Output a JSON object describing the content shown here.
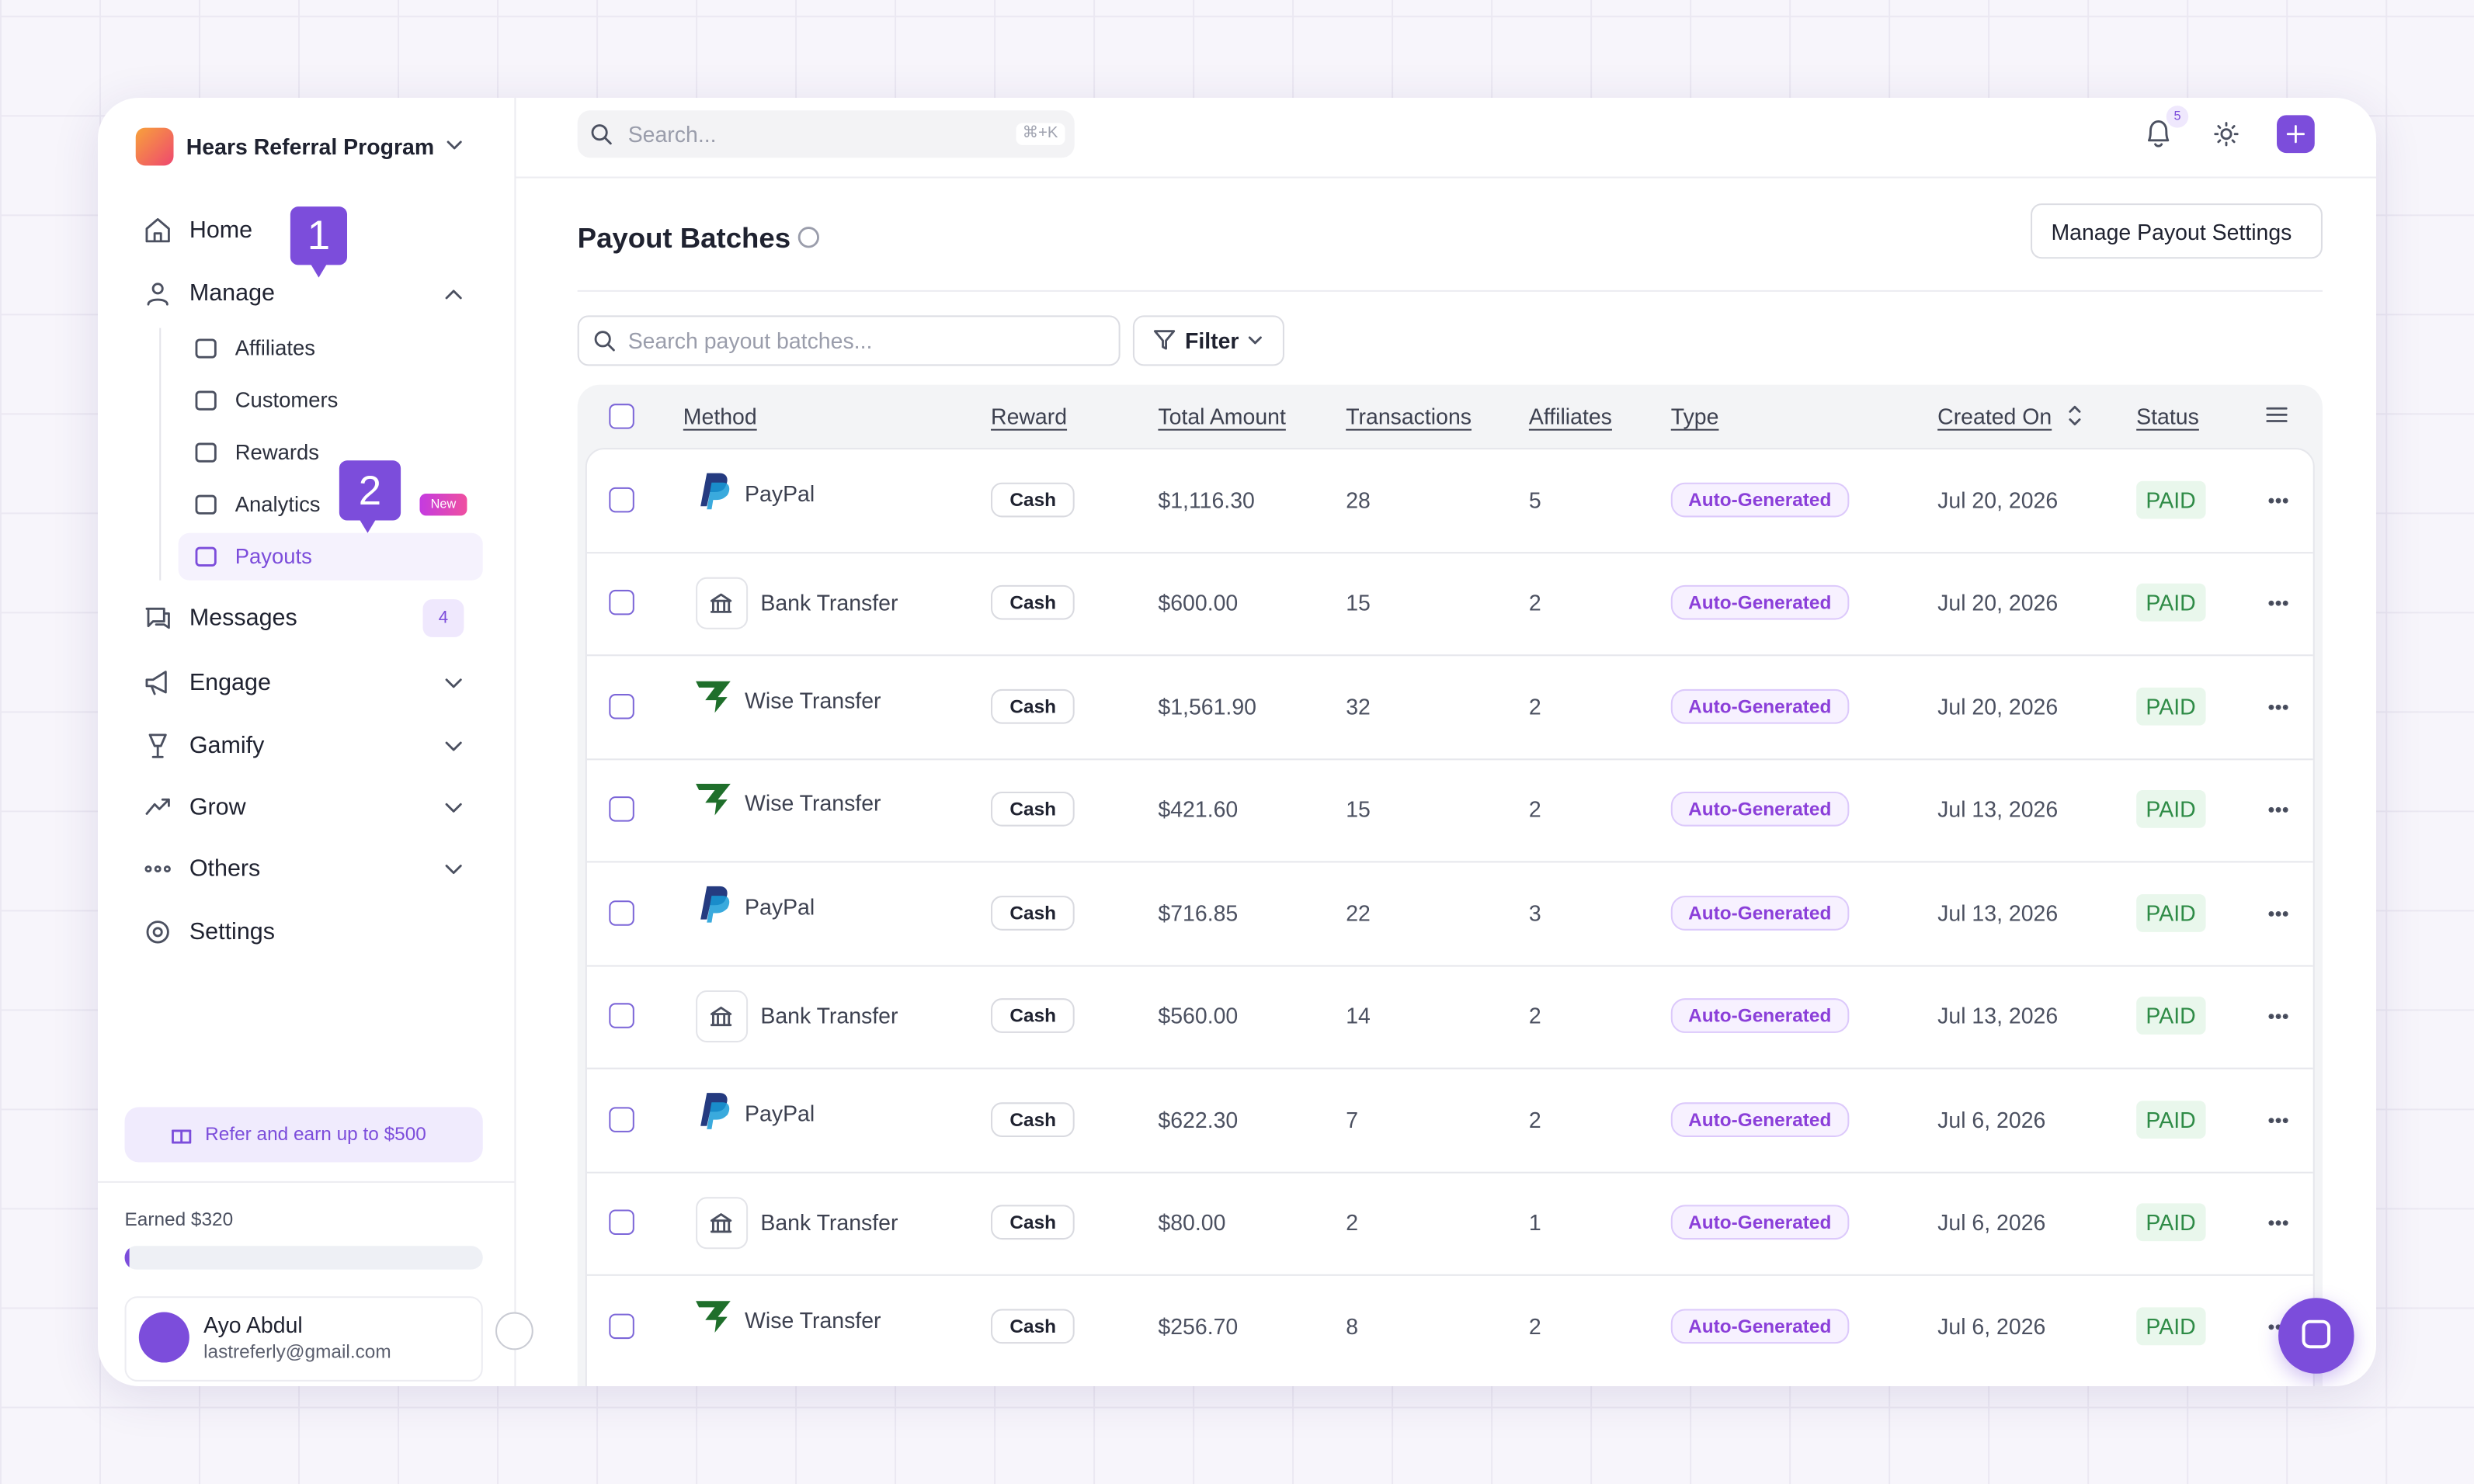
{
  "app": {
    "workspace": "Hears Referral Program",
    "search_placeholder": "Search...",
    "search_shortcut": "⌘+K",
    "notification_count": "5"
  },
  "sidebar": {
    "nav": [
      "Home",
      "Manage",
      "Messages",
      "Engage",
      "Gamify",
      "Grow",
      "Others",
      "Settings"
    ],
    "submenu": [
      "Affiliates",
      "Customers",
      "Rewards",
      "Analytics",
      "Payouts"
    ],
    "analytics_badge": "New",
    "messages_count": "4",
    "callouts": [
      "1",
      "2"
    ],
    "refer": "Refer and earn up to $500",
    "earned": "Earned $320",
    "user": {
      "name": "Ayo Abdul",
      "email": "lastreferly@gmail.com"
    }
  },
  "page": {
    "title": "Payout Batches",
    "settings_button": "Manage Payout Settings",
    "search_placeholder": "Search payout batches...",
    "filter": "Filter",
    "table": {
      "columns": [
        "Method",
        "Reward",
        "Total Amount",
        "Transactions",
        "Affiliates",
        "Type",
        "Created On",
        "Status"
      ],
      "rows": [
        [
          "PayPal",
          "Cash",
          "$1,116.30",
          28,
          5,
          "Auto-Generated",
          "Jul 20, 2026",
          "PAID"
        ],
        [
          "Bank Transfer",
          "Cash",
          "$600.00",
          15,
          2,
          "Auto-Generated",
          "Jul 20, 2026",
          "PAID"
        ],
        [
          "Wise Transfer",
          "Cash",
          "$1,561.90",
          32,
          2,
          "Auto-Generated",
          "Jul 20, 2026",
          "PAID"
        ],
        [
          "Wise Transfer",
          "Cash",
          "$421.60",
          15,
          2,
          "Auto-Generated",
          "Jul 13, 2026",
          "PAID"
        ],
        [
          "PayPal",
          "Cash",
          "$716.85",
          22,
          3,
          "Auto-Generated",
          "Jul 13, 2026",
          "PAID"
        ],
        [
          "Bank Transfer",
          "Cash",
          "$560.00",
          14,
          2,
          "Auto-Generated",
          "Jul 13, 2026",
          "PAID"
        ],
        [
          "PayPal",
          "Cash",
          "$622.30",
          7,
          2,
          "Auto-Generated",
          "Jul 6, 2026",
          "PAID"
        ],
        [
          "Bank Transfer",
          "Cash",
          "$80.00",
          2,
          1,
          "Auto-Generated",
          "Jul 6, 2026",
          "PAID"
        ],
        [
          "Wise Transfer",
          "Cash",
          "$256.70",
          8,
          2,
          "Auto-Generated",
          "Jul 6, 2026",
          "PAID"
        ]
      ]
    }
  }
}
